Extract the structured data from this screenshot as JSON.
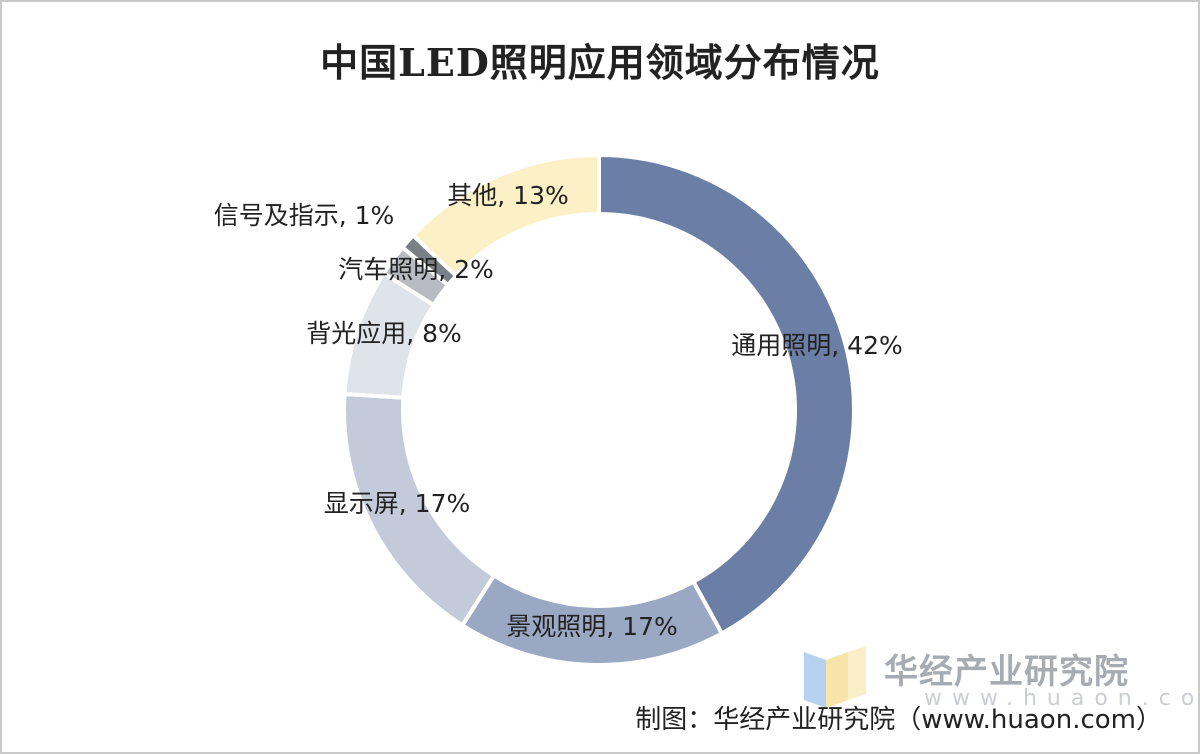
{
  "chart_data": {
    "type": "pie",
    "title": "中国LED照明应用领域分布情况",
    "donut": true,
    "slices": [
      {
        "name": "通用照明",
        "value": 42,
        "label": "通用照明, 42%",
        "color": "#6b7fa6"
      },
      {
        "name": "景观照明",
        "value": 17,
        "label": "景观照明, 17%",
        "color": "#9aa8c4"
      },
      {
        "name": "显示屏",
        "value": 17,
        "label": "显示屏, 17%",
        "color": "#c3cbdb"
      },
      {
        "name": "背光应用",
        "value": 8,
        "label": "背光应用, 8%",
        "color": "#dfe3ea"
      },
      {
        "name": "汽车照明",
        "value": 2,
        "label": "汽车照明, 2%",
        "color": "#b8bcc2"
      },
      {
        "name": "信号及指示",
        "value": 1,
        "label": "信号及指示, 1%",
        "color": "#7b7f86"
      },
      {
        "name": "其他",
        "value": 13,
        "label": "其他, 13%",
        "color": "#fbf0c6"
      }
    ]
  },
  "watermark": {
    "name": "华经产业研究院",
    "url": "www.huaon.com"
  },
  "source_note": "制图：华经产业研究院（www.huaon.com）"
}
